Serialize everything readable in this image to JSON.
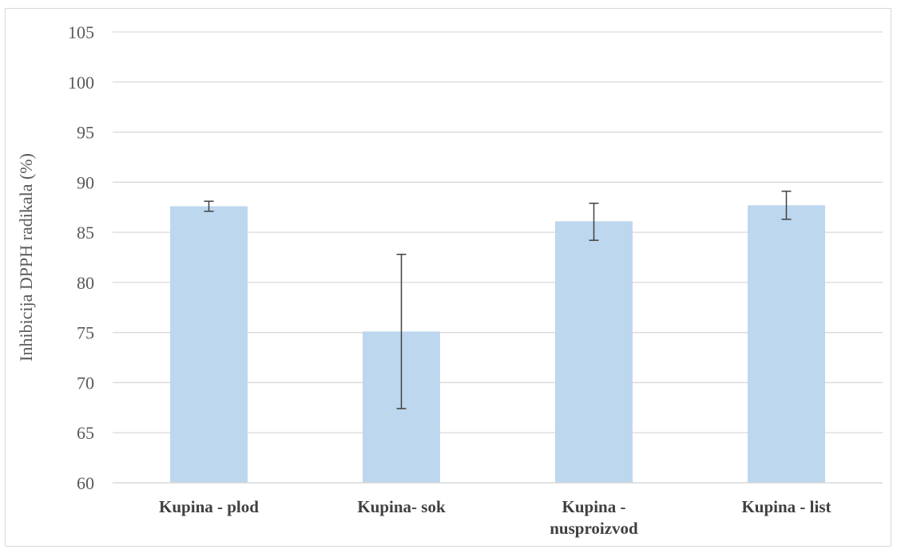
{
  "chart_data": {
    "type": "bar",
    "title": "",
    "xlabel": "",
    "ylabel": "Inhibicija DPPH radikala (%)",
    "ylim": [
      60,
      105
    ],
    "yticks": [
      60,
      65,
      70,
      75,
      80,
      85,
      90,
      95,
      100,
      105
    ],
    "grid": true,
    "categories": [
      [
        "Kupina - plod"
      ],
      [
        "Kupina- sok"
      ],
      [
        "Kupina -",
        "nusproizvod"
      ],
      [
        "Kupina - list"
      ]
    ],
    "values": [
      87.6,
      75.1,
      86.1,
      87.7
    ],
    "error_low": [
      87.1,
      67.4,
      84.2,
      86.3
    ],
    "error_high": [
      88.1,
      82.8,
      87.9,
      89.1
    ],
    "bar_color": "#bdd7ee",
    "grid_color": "#d9d9d9",
    "error_color": "#404040"
  }
}
